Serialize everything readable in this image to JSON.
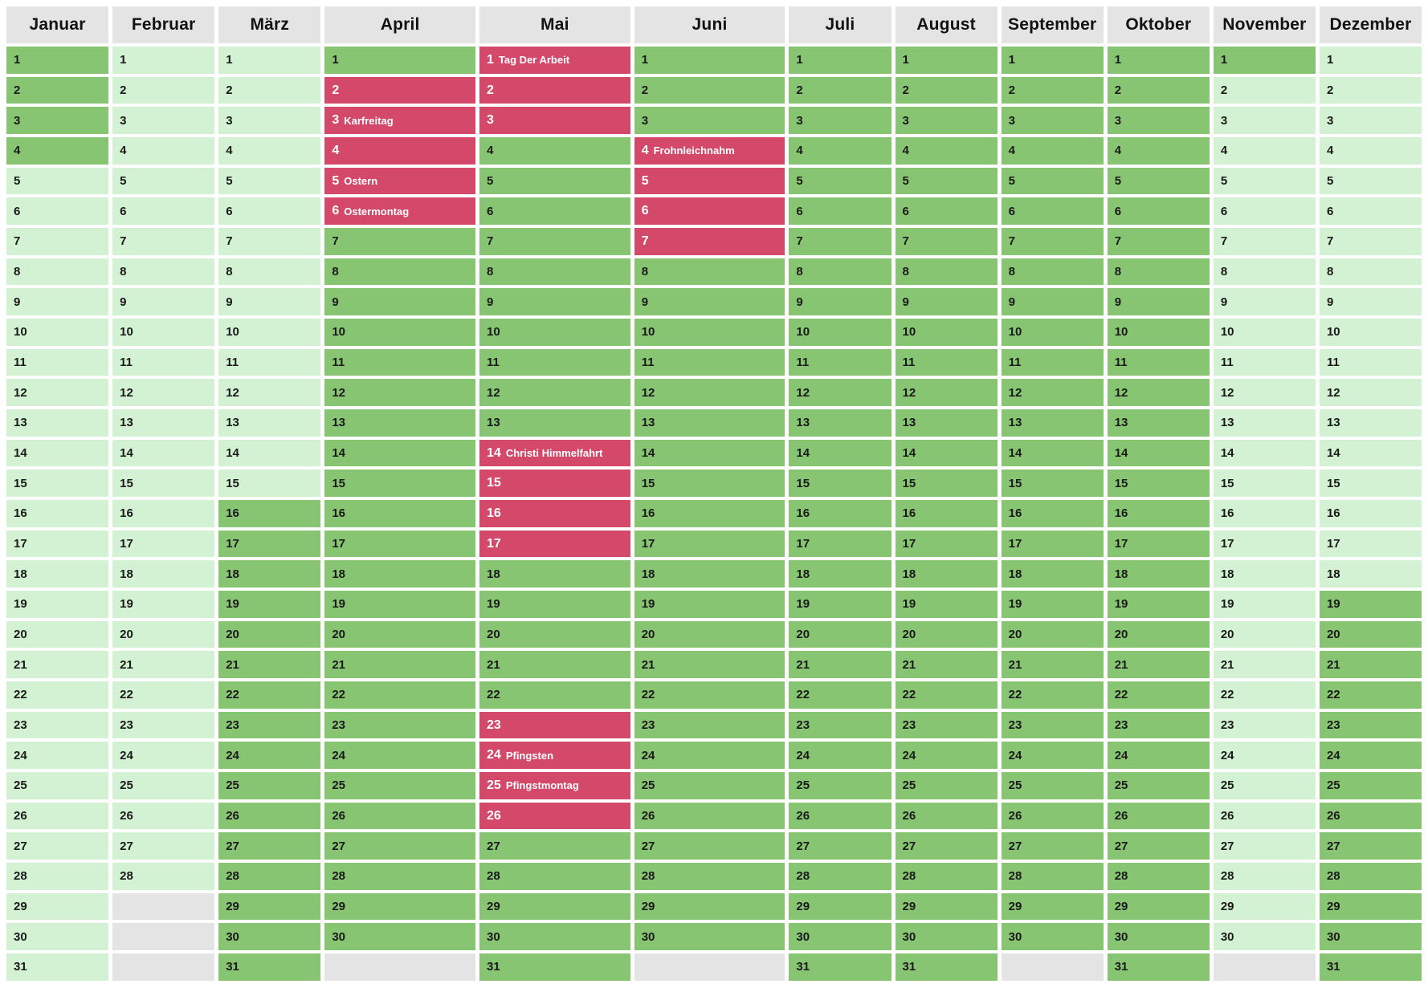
{
  "colors": {
    "green": "#88c572",
    "light_green": "#d3f2d3",
    "pink": "#d4486a",
    "gray": "#e5e4e4",
    "day_text": "#191919",
    "holiday_text": "#ffffff"
  },
  "months": [
    {
      "label": "Januar",
      "days": 31,
      "wide": false,
      "ranges": [
        [
          1,
          4,
          "green"
        ],
        [
          5,
          31,
          "light"
        ]
      ],
      "holidays": {}
    },
    {
      "label": "Februar",
      "days": 28,
      "wide": false,
      "ranges": [
        [
          1,
          28,
          "light"
        ]
      ],
      "holidays": {}
    },
    {
      "label": "März",
      "days": 31,
      "wide": false,
      "ranges": [
        [
          1,
          15,
          "light"
        ],
        [
          16,
          31,
          "green"
        ]
      ],
      "holidays": {}
    },
    {
      "label": "April",
      "days": 30,
      "wide": true,
      "ranges": [
        [
          1,
          1,
          "green"
        ],
        [
          2,
          6,
          "pink"
        ],
        [
          7,
          30,
          "green"
        ]
      ],
      "holidays": {
        "3": "Karfreitag",
        "5": "Ostern",
        "6": "Ostermontag"
      }
    },
    {
      "label": "Mai",
      "days": 31,
      "wide": true,
      "ranges": [
        [
          1,
          3,
          "pink"
        ],
        [
          4,
          13,
          "green"
        ],
        [
          14,
          17,
          "pink"
        ],
        [
          18,
          22,
          "green"
        ],
        [
          23,
          26,
          "pink"
        ],
        [
          27,
          31,
          "green"
        ]
      ],
      "holidays": {
        "1": "Tag Der Arbeit",
        "14": "Christi Himmelfahrt",
        "24": "Pfingsten",
        "25": "Pfingstmontag"
      }
    },
    {
      "label": "Juni",
      "days": 30,
      "wide": true,
      "ranges": [
        [
          1,
          3,
          "green"
        ],
        [
          4,
          7,
          "pink"
        ],
        [
          8,
          30,
          "green"
        ]
      ],
      "holidays": {
        "4": "Frohnleichnahm"
      }
    },
    {
      "label": "Juli",
      "days": 31,
      "wide": false,
      "ranges": [
        [
          1,
          31,
          "green"
        ]
      ],
      "holidays": {}
    },
    {
      "label": "August",
      "days": 31,
      "wide": false,
      "ranges": [
        [
          1,
          31,
          "green"
        ]
      ],
      "holidays": {}
    },
    {
      "label": "September",
      "days": 30,
      "wide": false,
      "ranges": [
        [
          1,
          30,
          "green"
        ]
      ],
      "holidays": {}
    },
    {
      "label": "Oktober",
      "days": 31,
      "wide": false,
      "ranges": [
        [
          1,
          31,
          "green"
        ]
      ],
      "holidays": {}
    },
    {
      "label": "November",
      "days": 30,
      "wide": false,
      "ranges": [
        [
          1,
          1,
          "green"
        ],
        [
          2,
          30,
          "light"
        ]
      ],
      "holidays": {}
    },
    {
      "label": "Dezember",
      "days": 31,
      "wide": false,
      "ranges": [
        [
          1,
          18,
          "light"
        ],
        [
          19,
          31,
          "green"
        ]
      ],
      "holidays": {}
    }
  ],
  "grid": {
    "rows_per_month": 31
  }
}
